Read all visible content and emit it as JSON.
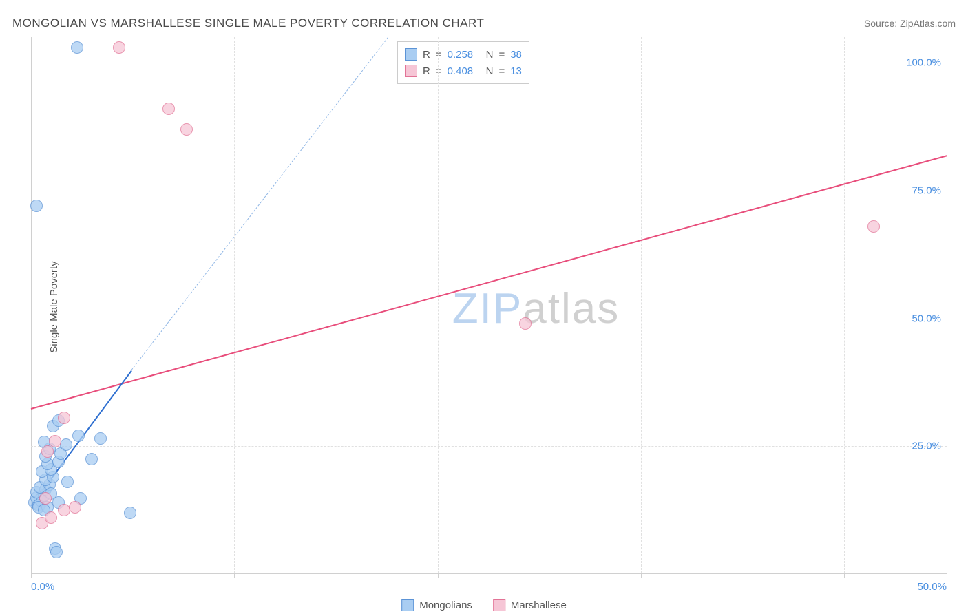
{
  "title": "MONGOLIAN VS MARSHALLESE SINGLE MALE POVERTY CORRELATION CHART",
  "source_label": "Source: ZipAtlas.com",
  "y_axis_label": "Single Male Poverty",
  "watermark": {
    "part1": "ZIP",
    "part2": "atlas",
    "color1": "#bcd4f0",
    "color2": "#d0d0d0"
  },
  "chart": {
    "type": "scatter",
    "xlim": [
      0,
      50
    ],
    "ylim": [
      0,
      105
    ],
    "background_color": "#ffffff",
    "grid_color": "#e0e0e0",
    "axis_color": "#d0d0d0",
    "tick_label_color": "#4a8fe0",
    "y_ticks": [
      25,
      50,
      75,
      100
    ],
    "y_tick_labels": [
      "25.0%",
      "50.0%",
      "75.0%",
      "100.0%"
    ],
    "x_tick_min_label": "0.0%",
    "x_tick_max_label": "50.0%",
    "x_gridlines": [
      0,
      11.1,
      22.2,
      33.3,
      44.4
    ]
  },
  "series": {
    "mongolians": {
      "name": "Mongolians",
      "fill": "#a9cdf2",
      "stroke": "#5b93d6",
      "marker_radius": 9,
      "marker_opacity": 0.75,
      "R": "0.258",
      "N": "38",
      "points": [
        [
          0.2,
          14
        ],
        [
          0.3,
          15
        ],
        [
          0.5,
          14.5
        ],
        [
          0.4,
          13.5
        ],
        [
          0.6,
          14.2
        ],
        [
          0.7,
          15.3
        ],
        [
          0.3,
          16
        ],
        [
          0.8,
          16.5
        ],
        [
          0.5,
          17
        ],
        [
          1.0,
          17.5
        ],
        [
          0.4,
          13
        ],
        [
          0.8,
          18.5
        ],
        [
          1.2,
          19
        ],
        [
          0.6,
          20
        ],
        [
          1.1,
          20.5
        ],
        [
          0.9,
          21.5
        ],
        [
          1.5,
          22
        ],
        [
          0.8,
          23
        ],
        [
          1.6,
          23.5
        ],
        [
          1.0,
          24.5
        ],
        [
          0.7,
          25.8
        ],
        [
          1.9,
          25.3
        ],
        [
          2.6,
          27.0
        ],
        [
          3.8,
          26.5
        ],
        [
          1.2,
          29
        ],
        [
          1.5,
          30
        ],
        [
          1.3,
          5
        ],
        [
          1.4,
          4.3
        ],
        [
          1.5,
          14
        ],
        [
          2.7,
          14.8
        ],
        [
          5.4,
          12
        ],
        [
          3.3,
          22.5
        ],
        [
          2.0,
          18
        ],
        [
          0.3,
          72
        ],
        [
          2.5,
          103
        ],
        [
          0.9,
          13
        ],
        [
          0.7,
          12.5
        ],
        [
          1.1,
          15.8
        ]
      ],
      "trend": {
        "solid": {
          "x1": 0,
          "y1": 13.5,
          "x2": 5.5,
          "y2": 40,
          "color": "#2e6fd0",
          "width": 2.8
        },
        "dashed": {
          "x1": 5.5,
          "y1": 40,
          "x2": 19.5,
          "y2": 105,
          "color": "#8fb6e5",
          "width": 1.4,
          "dash": "6,5"
        }
      }
    },
    "marshallese": {
      "name": "Marshallese",
      "fill": "#f6c6d6",
      "stroke": "#e27396",
      "marker_radius": 9,
      "marker_opacity": 0.75,
      "R": "0.408",
      "N": "13",
      "points": [
        [
          0.6,
          10
        ],
        [
          1.1,
          11
        ],
        [
          1.8,
          12.5
        ],
        [
          2.4,
          13
        ],
        [
          0.8,
          14.8
        ],
        [
          0.9,
          24
        ],
        [
          1.3,
          26
        ],
        [
          1.8,
          30.5
        ],
        [
          27,
          49
        ],
        [
          8.5,
          87
        ],
        [
          7.5,
          91
        ],
        [
          4.8,
          103
        ],
        [
          46,
          68
        ]
      ],
      "trend": {
        "solid": {
          "x1": 0,
          "y1": 32.5,
          "x2": 50,
          "y2": 82,
          "color": "#e84d7b",
          "width": 2.5
        }
      }
    }
  },
  "stats_box": {
    "R_label": "R",
    "N_label": "N",
    "eq": "=",
    "value_color": "#4a8fe0",
    "label_color": "#555555"
  },
  "legend": {
    "items": [
      "mongolians",
      "marshallese"
    ]
  }
}
